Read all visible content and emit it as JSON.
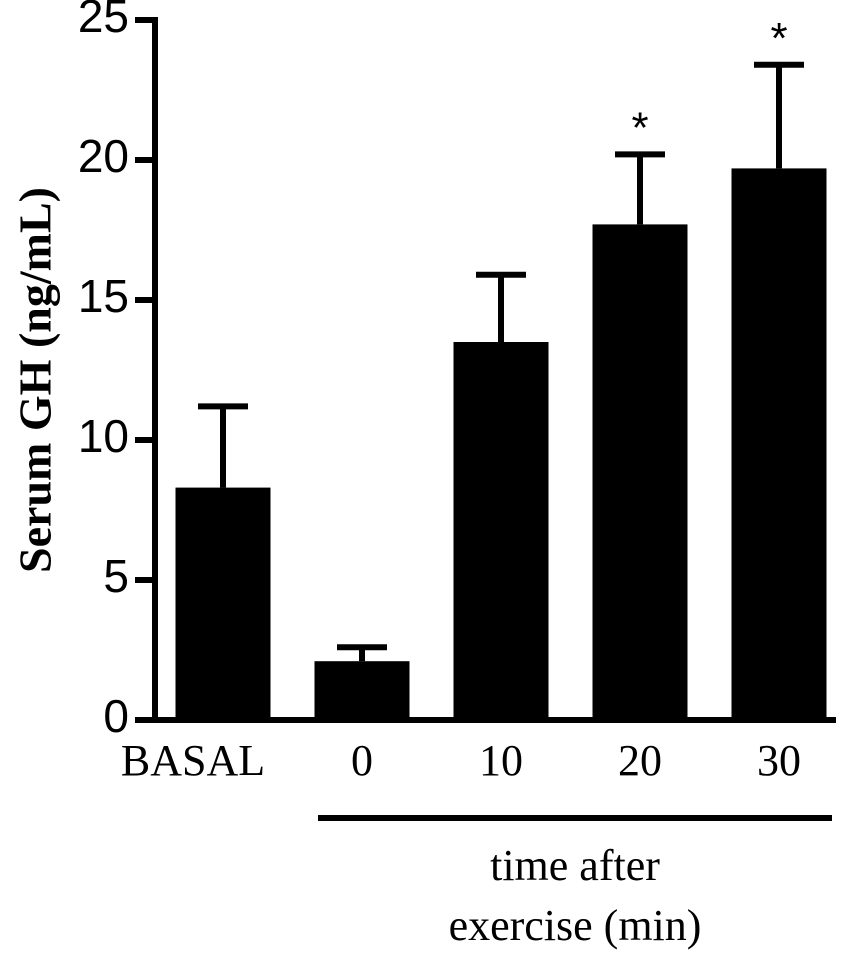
{
  "chart_data": {
    "type": "bar",
    "categories": [
      "BASAL",
      "0",
      "10",
      "20",
      "30"
    ],
    "values": [
      8.3,
      2.1,
      13.5,
      17.7,
      19.7
    ],
    "errors": [
      2.9,
      0.5,
      2.4,
      2.5,
      3.7
    ],
    "significance": [
      "",
      "",
      "",
      "*",
      "*"
    ],
    "ylabel": "Serum GH (ng/mL)",
    "xlabel": "",
    "group_label_line1": "time after",
    "group_label_line2": "exercise (min)",
    "ylim": [
      0,
      25
    ],
    "yticks": [
      0,
      5,
      10,
      15,
      20,
      25
    ],
    "grid": false,
    "bar_color": "#000000"
  }
}
